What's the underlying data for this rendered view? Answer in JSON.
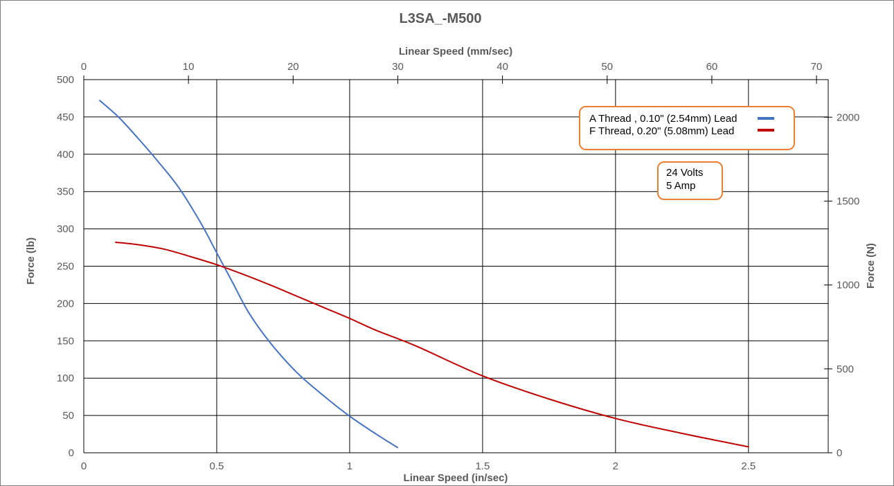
{
  "chart_data": {
    "type": "line",
    "title": "L3SA_-M500",
    "xlabel": "Linear Speed (in/sec)",
    "x2label": "Linear Speed (mm/sec)",
    "ylabel": "Force (lb)",
    "y2label": "Force (N)",
    "xlim": [
      0,
      2.8
    ],
    "x2lim": [
      0,
      71.12
    ],
    "ylim": [
      0,
      500
    ],
    "y2lim": [
      0,
      2224
    ],
    "xticks": [
      0,
      0.5,
      1,
      1.5,
      2,
      2.5
    ],
    "x2ticks": [
      0,
      10,
      20,
      30,
      40,
      50,
      60,
      70
    ],
    "yticks": [
      0,
      50,
      100,
      150,
      200,
      250,
      300,
      350,
      400,
      450,
      500
    ],
    "y2ticks": [
      0,
      500,
      1000,
      1500,
      2000
    ],
    "grid": true,
    "legend_position": "top-right",
    "colors": {
      "frame": "#7f7f7f",
      "grid": "#000000",
      "text": "#595959",
      "box_border": "#ed7d31"
    },
    "series": [
      {
        "name": "A Thread , 0.10\" (2.54mm) Lead",
        "color": "#4472c4",
        "x": [
          0.06,
          0.13,
          0.2,
          0.28,
          0.36,
          0.44,
          0.5,
          0.56,
          0.62,
          0.7,
          0.8,
          0.9,
          1.0,
          1.1,
          1.18
        ],
        "y": [
          472,
          450,
          423,
          390,
          354,
          308,
          268,
          228,
          188,
          148,
          108,
          77,
          49,
          25,
          7
        ]
      },
      {
        "name": "F Thread, 0.20\"  (5.08mm) Lead",
        "color": "#c00000",
        "x": [
          0.12,
          0.2,
          0.3,
          0.4,
          0.5,
          0.6,
          0.7,
          0.8,
          0.9,
          1.0,
          1.1,
          1.25,
          1.5,
          1.75,
          2.0,
          2.25,
          2.5
        ],
        "y": [
          282,
          279,
          273,
          263,
          252,
          239,
          225,
          210,
          195,
          180,
          164,
          143,
          103,
          72,
          46,
          26,
          8
        ]
      }
    ],
    "annotation": {
      "lines": [
        "24 Volts",
        "5 Amp"
      ]
    }
  }
}
